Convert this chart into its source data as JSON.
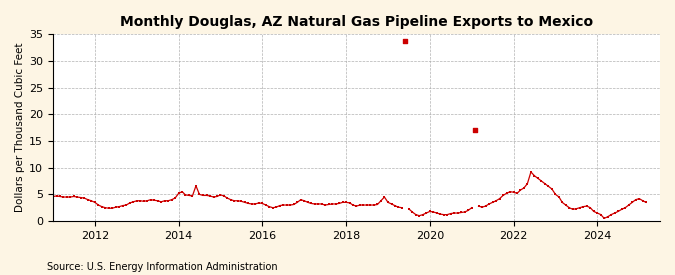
{
  "title": "Monthly Douglas, AZ Natural Gas Pipeline Exports to Mexico",
  "ylabel": "Dollars per Thousand Cubic Feet",
  "source": "Source: U.S. Energy Information Administration",
  "background_color": "#fdf5e4",
  "plot_background": "#ffffff",
  "line_color": "#cc0000",
  "ylim": [
    0,
    35
  ],
  "yticks": [
    0,
    5,
    10,
    15,
    20,
    25,
    30,
    35
  ],
  "xtick_years": [
    2012,
    2014,
    2016,
    2018,
    2020,
    2022,
    2024
  ],
  "outlier_threshold": 12,
  "data": {
    "2011-01": 4.6,
    "2011-02": 4.7,
    "2011-03": 4.6,
    "2011-04": 4.5,
    "2011-05": 4.5,
    "2011-06": 4.5,
    "2011-07": 4.6,
    "2011-08": 4.5,
    "2011-09": 4.4,
    "2011-10": 4.3,
    "2011-11": 4.0,
    "2011-12": 3.8,
    "2012-01": 3.5,
    "2012-02": 3.0,
    "2012-03": 2.7,
    "2012-04": 2.5,
    "2012-05": 2.4,
    "2012-06": 2.4,
    "2012-07": 2.6,
    "2012-08": 2.7,
    "2012-09": 2.9,
    "2012-10": 3.0,
    "2012-11": 3.4,
    "2012-12": 3.6,
    "2013-01": 3.8,
    "2013-02": 3.8,
    "2013-03": 3.7,
    "2013-04": 3.8,
    "2013-05": 4.0,
    "2013-06": 3.9,
    "2013-07": 3.8,
    "2013-08": 3.6,
    "2013-09": 3.8,
    "2013-10": 3.8,
    "2013-11": 4.0,
    "2013-12": 4.3,
    "2014-01": 5.2,
    "2014-02": 5.5,
    "2014-03": 4.9,
    "2014-04": 4.8,
    "2014-05": 4.7,
    "2014-06": 6.6,
    "2014-07": 5.0,
    "2014-08": 4.8,
    "2014-09": 4.8,
    "2014-10": 4.7,
    "2014-11": 4.5,
    "2014-12": 4.6,
    "2015-01": 4.9,
    "2015-02": 4.7,
    "2015-03": 4.3,
    "2015-04": 4.0,
    "2015-05": 3.8,
    "2015-06": 3.8,
    "2015-07": 3.7,
    "2015-08": 3.5,
    "2015-09": 3.3,
    "2015-10": 3.2,
    "2015-11": 3.2,
    "2015-12": 3.4,
    "2016-01": 3.3,
    "2016-02": 3.0,
    "2016-03": 2.7,
    "2016-04": 2.5,
    "2016-05": 2.6,
    "2016-06": 2.9,
    "2016-07": 3.0,
    "2016-08": 3.0,
    "2016-09": 3.0,
    "2016-10": 3.1,
    "2016-11": 3.5,
    "2016-12": 4.0,
    "2017-01": 3.8,
    "2017-02": 3.5,
    "2017-03": 3.3,
    "2017-04": 3.2,
    "2017-05": 3.2,
    "2017-06": 3.2,
    "2017-07": 3.0,
    "2017-08": 3.1,
    "2017-09": 3.2,
    "2017-10": 3.2,
    "2017-11": 3.3,
    "2017-12": 3.5,
    "2018-01": 3.5,
    "2018-02": 3.4,
    "2018-03": 3.0,
    "2018-04": 2.8,
    "2018-05": 3.0,
    "2018-06": 3.0,
    "2018-07": 3.0,
    "2018-08": 3.0,
    "2018-09": 3.0,
    "2018-10": 3.1,
    "2018-11": 3.8,
    "2018-12": 4.5,
    "2019-01": 3.5,
    "2019-02": 3.2,
    "2019-03": 2.9,
    "2019-04": 2.6,
    "2019-05": 2.5,
    "2019-06": 33.8,
    "2019-07": 2.3,
    "2019-08": 1.7,
    "2019-09": 1.2,
    "2019-10": 1.0,
    "2019-11": 1.2,
    "2019-12": 1.5,
    "2020-01": 1.8,
    "2020-02": 1.7,
    "2020-03": 1.5,
    "2020-04": 1.3,
    "2020-05": 1.2,
    "2020-06": 1.2,
    "2020-07": 1.4,
    "2020-08": 1.5,
    "2020-09": 1.5,
    "2020-10": 1.6,
    "2020-11": 1.7,
    "2020-12": 2.0,
    "2021-01": 2.5,
    "2021-02": 17.0,
    "2021-03": 2.8,
    "2021-04": 2.6,
    "2021-05": 2.8,
    "2021-06": 3.2,
    "2021-07": 3.5,
    "2021-08": 3.8,
    "2021-09": 4.2,
    "2021-10": 4.8,
    "2021-11": 5.2,
    "2021-12": 5.5,
    "2022-01": 5.4,
    "2022-02": 5.2,
    "2022-03": 5.8,
    "2022-04": 6.2,
    "2022-05": 7.0,
    "2022-06": 9.2,
    "2022-07": 8.5,
    "2022-08": 8.0,
    "2022-09": 7.5,
    "2022-10": 7.0,
    "2022-11": 6.5,
    "2022-12": 6.0,
    "2023-01": 5.0,
    "2023-02": 4.5,
    "2023-03": 3.5,
    "2023-04": 3.0,
    "2023-05": 2.5,
    "2023-06": 2.2,
    "2023-07": 2.3,
    "2023-08": 2.5,
    "2023-09": 2.7,
    "2023-10": 2.8,
    "2023-11": 2.5,
    "2023-12": 1.8,
    "2024-01": 1.5,
    "2024-02": 1.2,
    "2024-03": 0.5,
    "2024-04": 0.8,
    "2024-05": 1.2,
    "2024-06": 1.5,
    "2024-07": 1.8,
    "2024-08": 2.2,
    "2024-09": 2.5,
    "2024-10": 3.0,
    "2024-11": 3.5,
    "2024-12": 4.0,
    "2025-01": 4.2,
    "2025-02": 3.8,
    "2025-03": 3.5
  }
}
